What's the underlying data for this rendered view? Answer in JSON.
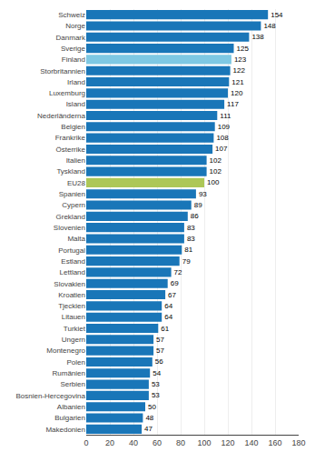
{
  "chart_data": {
    "type": "bar",
    "orientation": "horizontal",
    "categories": [
      "Schweiz",
      "Norge",
      "Danmark",
      "Sverige",
      "Finland",
      "Storbritannien",
      "Irland",
      "Luxemburg",
      "Island",
      "Nederländerna",
      "Belgien",
      "Frankrike",
      "Österrike",
      "Italien",
      "Tyskland",
      "EU28",
      "Spanien",
      "Cypern",
      "Grekland",
      "Slovenien",
      "Malta",
      "Portugal",
      "Estland",
      "Lettland",
      "Slovakien",
      "Kroatien",
      "Tjeckien",
      "Litauen",
      "Turkiet",
      "Ungern",
      "Montenegro",
      "Polen",
      "Rumänien",
      "Serbien",
      "Bosnien-Hercegovina",
      "Albanien",
      "Bulgarien",
      "Makedonien"
    ],
    "values": [
      154,
      148,
      138,
      125,
      123,
      122,
      121,
      120,
      117,
      111,
      109,
      108,
      107,
      102,
      102,
      100,
      93,
      89,
      86,
      83,
      83,
      81,
      79,
      72,
      69,
      67,
      64,
      64,
      61,
      57,
      57,
      56,
      54,
      53,
      53,
      50,
      48,
      47
    ],
    "colors": [
      "#1976b8",
      "#1976b8",
      "#1976b8",
      "#1976b8",
      "#7ec8e3",
      "#1976b8",
      "#1976b8",
      "#1976b8",
      "#1976b8",
      "#1976b8",
      "#1976b8",
      "#1976b8",
      "#1976b8",
      "#1976b8",
      "#1976b8",
      "#adc757",
      "#1976b8",
      "#1976b8",
      "#1976b8",
      "#1976b8",
      "#1976b8",
      "#1976b8",
      "#1976b8",
      "#1976b8",
      "#1976b8",
      "#1976b8",
      "#1976b8",
      "#1976b8",
      "#1976b8",
      "#1976b8",
      "#1976b8",
      "#1976b8",
      "#1976b8",
      "#1976b8",
      "#1976b8",
      "#1976b8",
      "#1976b8",
      "#1976b8"
    ],
    "xlim": [
      0,
      180
    ],
    "xticks": [
      0,
      20,
      40,
      60,
      80,
      100,
      120,
      140,
      160,
      180
    ],
    "grid": true,
    "data_labels": true
  }
}
